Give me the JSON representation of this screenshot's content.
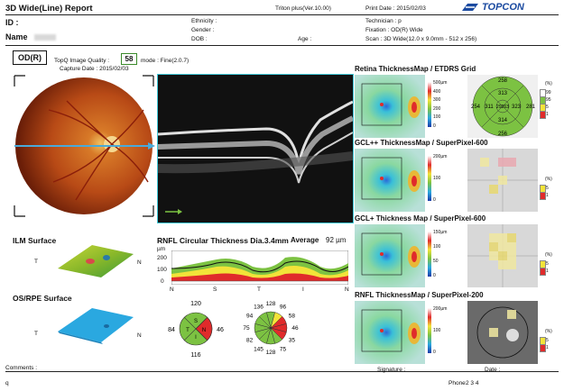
{
  "header": {
    "title": "3D Wide(Line) Report",
    "version": "Triton plus(Ver.10.00)",
    "print_date": "Print Date : 2015/02/03",
    "brand": "TOPCON",
    "id_label": "ID :",
    "name_label": "Name",
    "ethnicity": "Ethnicity :",
    "gender": "Gender :",
    "dob": "DOB :",
    "age": "Age :",
    "technician": "Technician : p",
    "fixation": "Fixation : OD(R) Wide",
    "scan": "Scan : 3D Wide(12.0 x 9.0mm - 512 x 256)"
  },
  "exam": {
    "eye": "OD(R)",
    "topq_label": "TopQ Image Quality :",
    "topq_value": "58",
    "mode": "mode : Fine(2.0.7)",
    "capture_date": "Capture Date : 2015/02/03"
  },
  "surfaces": {
    "ilm": "ILM Surface",
    "ilm_t": "T",
    "ilm_n": "N",
    "osrpe": "OS/RPE Surface",
    "osrpe_t": "T",
    "osrpe_n": "N"
  },
  "rnfl": {
    "title": "RNFL Circular Thickness Dia.3.4mm",
    "avg_label": "Average",
    "avg_value": "92 µm",
    "y_unit": "µm",
    "y_ticks": [
      "200",
      "100",
      "0"
    ],
    "x_ticks": [
      "N",
      "S",
      "T",
      "I",
      "N"
    ]
  },
  "quadrants": {
    "values": {
      "s": "120",
      "n": "46",
      "i": "116",
      "t": "84"
    },
    "letters": {
      "s": "S",
      "n": "N",
      "i": "I",
      "t": "T"
    }
  },
  "clock": {
    "values": [
      "128",
      "96",
      "58",
      "46",
      "35",
      "75",
      "128",
      "145",
      "82",
      "75",
      "94",
      "136"
    ]
  },
  "maps": [
    {
      "title": "Retina ThicknessMap / ETDRS Grid",
      "scale": [
        "500µm",
        "400",
        "300",
        "200",
        "100",
        "0"
      ]
    },
    {
      "title": "GCL++ ThicknessMap / SuperPixel-600",
      "scale": [
        "200µm",
        "100",
        "0"
      ]
    },
    {
      "title": "GCL+ Thickness Map / SuperPixel-600",
      "scale": [
        "150µm",
        "100",
        "50",
        "0"
      ]
    },
    {
      "title": "RNFL ThicknessMap / SuperPixel-200",
      "scale": [
        "200µm",
        "100",
        "0"
      ]
    }
  ],
  "etdrs": {
    "values": {
      "center": "263",
      "inner_s": "313",
      "inner_n": "323",
      "inner_i": "314",
      "inner_t": "311",
      "outer_s": "258",
      "outer_n": "281",
      "outer_i": "256",
      "outer_t": "254",
      "extra": "29"
    }
  },
  "percent_legend": {
    "unit": "(%)",
    "items_full": [
      "99",
      "95",
      "5",
      "1"
    ],
    "items_short": [
      "5",
      "1"
    ]
  },
  "footer": {
    "comments": "Comments :",
    "signature": "Signature :",
    "date": "Date :",
    "left_id": "q",
    "phone": "Phone",
    "phone_value": "2 3 4"
  },
  "colors": {
    "green": "#7cc242",
    "yellow": "#f2e339",
    "red": "#e02b2b",
    "cyan": "#20c0d8",
    "accent": "#1b4aa0"
  }
}
